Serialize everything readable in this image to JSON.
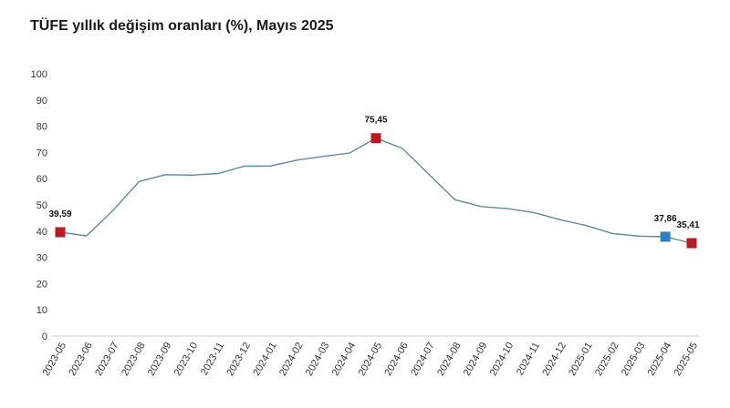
{
  "chart_data": {
    "type": "line",
    "title": "TÜFE yıllık değişim oranları (%), Mayıs 2025",
    "xlabel": "",
    "ylabel": "",
    "ylim": [
      0,
      100
    ],
    "yticks": [
      "0",
      "10",
      "20",
      "30",
      "40",
      "50",
      "60",
      "70",
      "80",
      "90",
      "100"
    ],
    "grid": false,
    "legend": "none",
    "categories": [
      "2023-05",
      "2023-06",
      "2023-07",
      "2023-08",
      "2023-09",
      "2023-10",
      "2023-11",
      "2023-12",
      "2024-01",
      "2024-02",
      "2024-03",
      "2024-04",
      "2024-05",
      "2024-06",
      "2024-07",
      "2024-08",
      "2024-09",
      "2024-10",
      "2024-11",
      "2024-12",
      "2025-01",
      "2025-02",
      "2025-03",
      "2025-04",
      "2025-05"
    ],
    "series": [
      {
        "values": [
          39.59,
          38.21,
          47.83,
          58.94,
          61.53,
          61.36,
          61.98,
          64.77,
          64.86,
          67.07,
          68.5,
          69.8,
          75.45,
          71.6,
          61.78,
          51.97,
          49.38,
          48.58,
          47.09,
          44.38,
          42.12,
          39.05,
          38.1,
          37.86,
          35.41
        ],
        "color": "#5b8aa6"
      }
    ],
    "highlights": [
      {
        "index": 0,
        "label": "39,59",
        "color": "#b81c22"
      },
      {
        "index": 12,
        "label": "75,45",
        "color": "#b81c22"
      },
      {
        "index": 23,
        "label": "37,86",
        "color": "#2f7fc0"
      },
      {
        "index": 24,
        "label": "35,41",
        "color": "#b81c22"
      }
    ]
  }
}
